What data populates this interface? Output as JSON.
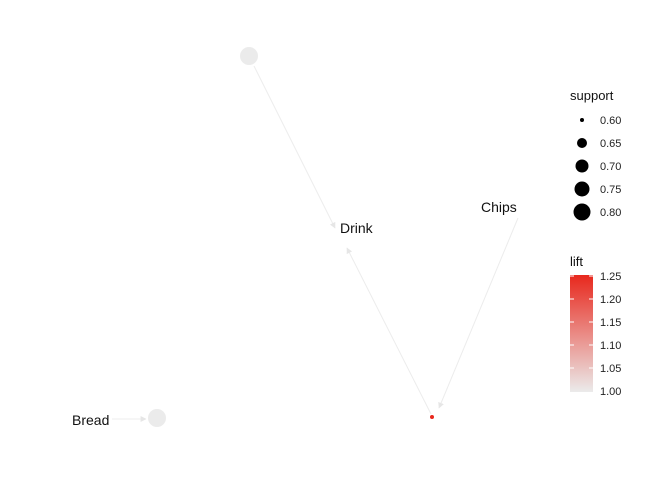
{
  "graph": {
    "items": [
      {
        "id": "Bread",
        "label": "Bread"
      },
      {
        "id": "Drink",
        "label": "Drink"
      },
      {
        "id": "Chips",
        "label": "Chips"
      }
    ],
    "rules": [
      {
        "id": "rule1",
        "support": 0.8,
        "lift": 1.0,
        "color": "#ebebeb"
      },
      {
        "id": "rule2",
        "support": 0.6,
        "lift": 1.25,
        "color": "#e8281d"
      },
      {
        "id": "rule3",
        "support": 0.8,
        "lift": 1.0,
        "color": "#ebebeb"
      }
    ],
    "edges": [
      {
        "from": "rule1",
        "to": "Drink"
      },
      {
        "from": "rule2",
        "to": "Drink"
      },
      {
        "from": "Chips",
        "to": "rule2"
      },
      {
        "from": "Bread",
        "to": "rule3"
      }
    ]
  },
  "legend": {
    "support": {
      "title": "support",
      "values": [
        "0.60",
        "0.65",
        "0.70",
        "0.75",
        "0.80"
      ]
    },
    "lift": {
      "title": "lift",
      "ticks": [
        "1.25",
        "1.20",
        "1.15",
        "1.10",
        "1.05",
        "1.00"
      ],
      "color_high": "#e8281d",
      "color_low": "#ebebeb"
    }
  }
}
